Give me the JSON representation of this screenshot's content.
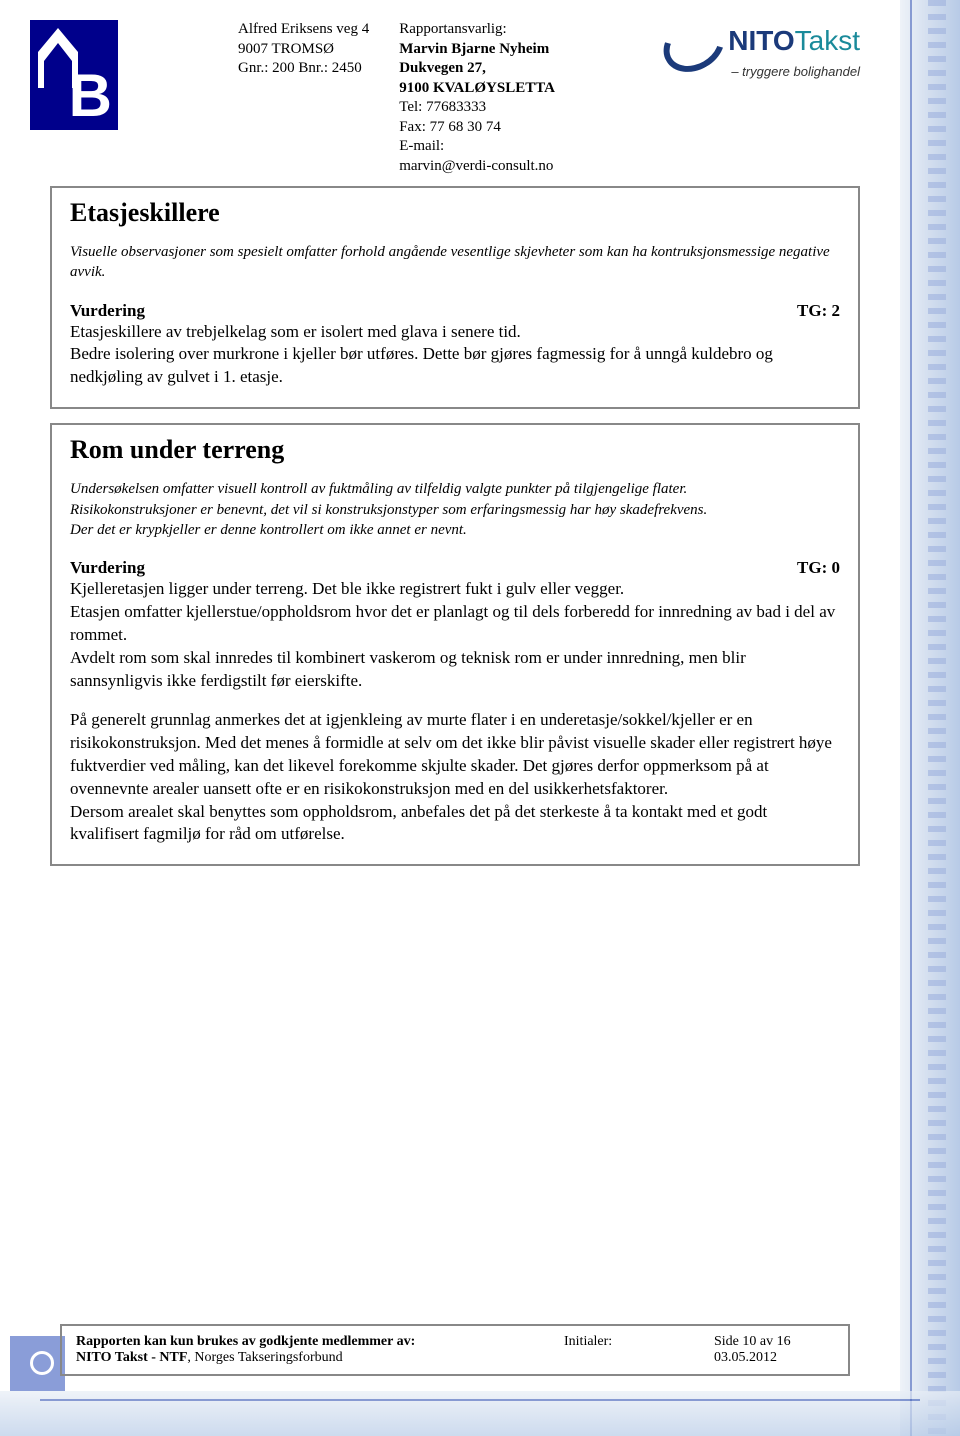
{
  "header": {
    "address": {
      "line1": "Alfred Eriksens veg 4",
      "line2": "9007 TROMSØ",
      "line3": "Gnr.: 200 Bnr.: 2450"
    },
    "responsible": {
      "label": "Rapportansvarlig:",
      "name": "Marvin Bjarne Nyheim",
      "addr1": "Dukvegen 27,",
      "addr2": "9100 KVALØYSLETTA",
      "tel": "Tel: 77683333",
      "fax": "Fax: 77 68 30 74",
      "email_label": "E-mail:",
      "email": "marvin@verdi-consult.no"
    },
    "logo_right": {
      "brand1": "NITO",
      "brand2": "Takst",
      "tagline": "– tryggere bolighandel"
    }
  },
  "section1": {
    "title": "Etasjeskillere",
    "intro": "Visuelle observasjoner som spesielt omfatter forhold angående vesentlige skjevheter som kan ha kontruksjonsmessige negative avvik.",
    "vurdering_label": "Vurdering",
    "tg": "TG: 2",
    "body": "Etasjeskillere av trebjelkelag som er isolert med glava i senere tid.\nBedre isolering over murkrone i kjeller bør utføres. Dette bør gjøres fagmessig for å unngå kuldebro og nedkjøling av gulvet i 1. etasje."
  },
  "section2": {
    "title": "Rom under terreng",
    "intro": "Undersøkelsen omfatter visuell kontroll av fuktmåling av tilfeldig valgte punkter på tilgjengelige flater.\nRisikokonstruksjoner er benevnt, det vil si konstruksjonstyper som erfaringsmessig har høy skadefrekvens.\nDer det er krypkjeller er denne kontrollert om ikke annet er nevnt.",
    "vurdering_label": "Vurdering",
    "tg": "TG: 0",
    "para1": "Kjelleretasjen ligger under terreng. Det ble ikke registrert fukt i gulv eller vegger.\nEtasjen omfatter kjellerstue/oppholdsrom hvor det er planlagt og til dels forberedd for innredning av bad i del av rommet.\nAvdelt rom som skal innredes til kombinert vaskerom og teknisk rom er under innredning, men blir sannsynligvis ikke ferdigstilt før eierskifte.",
    "para2": "På generelt grunnlag anmerkes det at igjenkleing av murte flater i en underetasje/sokkel/kjeller er en risikokonstruksjon. Med det menes å formidle at selv om det ikke blir påvist visuelle skader eller registrert høye fuktverdier ved måling, kan det likevel forekomme skjulte skader. Det gjøres derfor oppmerksom på at ovennevnte arealer uansett ofte er en risikokonstruksjon med en del usikkerhetsfaktorer.\nDersom arealet skal benyttes som oppholdsrom, anbefales det på det sterkeste å ta kontakt med et godt kvalifisert fagmiljø for råd om utførelse."
  },
  "footer": {
    "left1": "Rapporten kan kun brukes av godkjente medlemmer av:",
    "left2_bold": "NITO Takst - NTF",
    "left2_rest": ", Norges Takseringsforbund",
    "mid": "Initialer:",
    "page": "Side 10 av 16",
    "date": "03.05.2012"
  }
}
